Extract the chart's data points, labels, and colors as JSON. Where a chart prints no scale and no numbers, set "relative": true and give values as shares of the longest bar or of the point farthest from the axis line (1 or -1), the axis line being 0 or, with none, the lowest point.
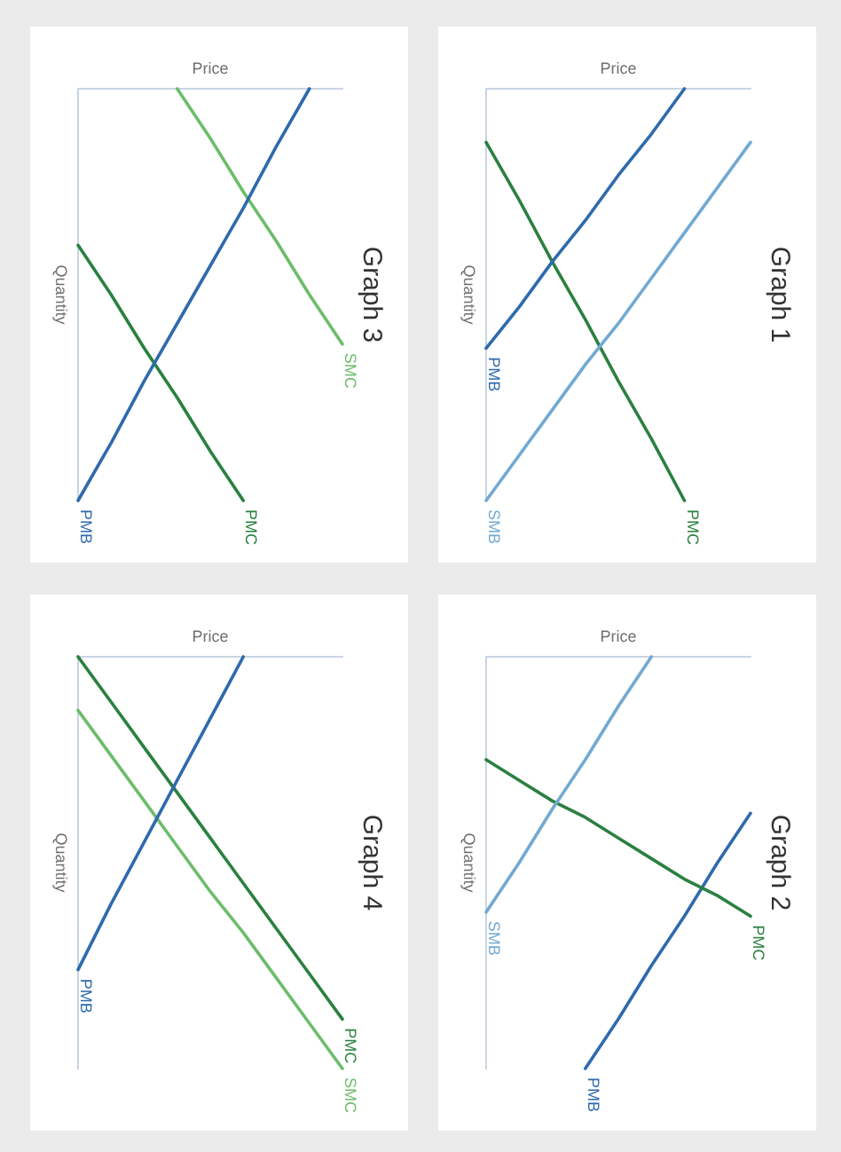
{
  "chart_data": [
    {
      "type": "line",
      "title": "Graph 3",
      "xlabel": "Price",
      "ylabel": "Quantity",
      "relative": true,
      "categories": [
        null,
        null,
        null,
        null,
        null,
        null,
        null,
        null,
        null
      ],
      "series": [
        {
          "name": "PMB",
          "color": "#2e6aad",
          "values": [
            -1,
            -0.86,
            -0.71,
            -0.57,
            -0.43,
            -0.29,
            -0.14,
            0,
            null
          ]
        },
        {
          "name": "PMC",
          "color": "#2a8040",
          "values": [
            -0.38,
            -0.5,
            -0.63,
            -0.75,
            -0.88,
            -1,
            null,
            null,
            null
          ]
        },
        {
          "name": "SMC",
          "color": "#6dbd6b",
          "values": [
            null,
            null,
            null,
            0,
            -0.12,
            -0.25,
            -0.37,
            -0.5,
            -0.62
          ]
        }
      ]
    },
    {
      "type": "line",
      "title": "Graph 1",
      "xlabel": "Price",
      "ylabel": "Quantity",
      "relative": true,
      "categories": [
        null,
        null,
        null,
        null,
        null,
        null,
        null,
        null,
        null
      ],
      "series": [
        {
          "name": "PMB",
          "color": "#2e6aad",
          "values": [
            -0.63,
            -0.53,
            -0.42,
            -0.32,
            -0.21,
            -0.11,
            0,
            null,
            null
          ]
        },
        {
          "name": "SMB",
          "color": "#72a9d2",
          "values": [
            -1,
            -0.89,
            -0.78,
            -0.67,
            -0.57,
            -0.46,
            -0.35,
            -0.24,
            -0.13
          ]
        },
        {
          "name": "PMC",
          "color": "#2a8040",
          "values": [
            -0.13,
            -0.27,
            -0.42,
            -0.56,
            -0.71,
            -0.85,
            -1,
            null,
            null
          ]
        }
      ]
    },
    {
      "type": "line",
      "title": "Graph 4",
      "xlabel": "Price",
      "ylabel": "Quantity",
      "relative": true,
      "categories": [
        null,
        null,
        null,
        null,
        null,
        null,
        null,
        null,
        null
      ],
      "series": [
        {
          "name": "PMB",
          "color": "#2e6aad",
          "values": [
            -0.76,
            -0.6,
            -0.45,
            -0.3,
            -0.15,
            0,
            null,
            null,
            null
          ]
        },
        {
          "name": "PMC",
          "color": "#2a8040",
          "values": [
            0,
            -0.11,
            -0.22,
            -0.33,
            -0.44,
            -0.55,
            -0.66,
            -0.77,
            -0.88
          ]
        },
        {
          "name": "SMC",
          "color": "#6dbd6b",
          "values": [
            -0.13,
            -0.24,
            -0.35,
            -0.46,
            -0.57,
            -0.67,
            -0.78,
            -0.89,
            -1
          ]
        }
      ]
    },
    {
      "type": "line",
      "title": "Graph 2",
      "xlabel": "Price",
      "ylabel": "Quantity",
      "relative": true,
      "categories": [
        null,
        null,
        null,
        null,
        null,
        null,
        null,
        null,
        null
      ],
      "series": [
        {
          "name": "SMB",
          "color": "#72a9d2",
          "values": [
            -0.62,
            -0.5,
            -0.37,
            -0.25,
            -0.12,
            0,
            null,
            null,
            null
          ]
        },
        {
          "name": "PMC",
          "color": "#2a8040",
          "values": [
            -0.25,
            -0.3,
            -0.35,
            -0.39,
            -0.44,
            -0.49,
            -0.54,
            -0.58,
            -0.63
          ]
        },
        {
          "name": "PMB",
          "color": "#2e6aad",
          "values": [
            null,
            null,
            null,
            -1,
            -0.88,
            -0.75,
            -0.63,
            -0.5,
            -0.38
          ]
        }
      ]
    }
  ]
}
